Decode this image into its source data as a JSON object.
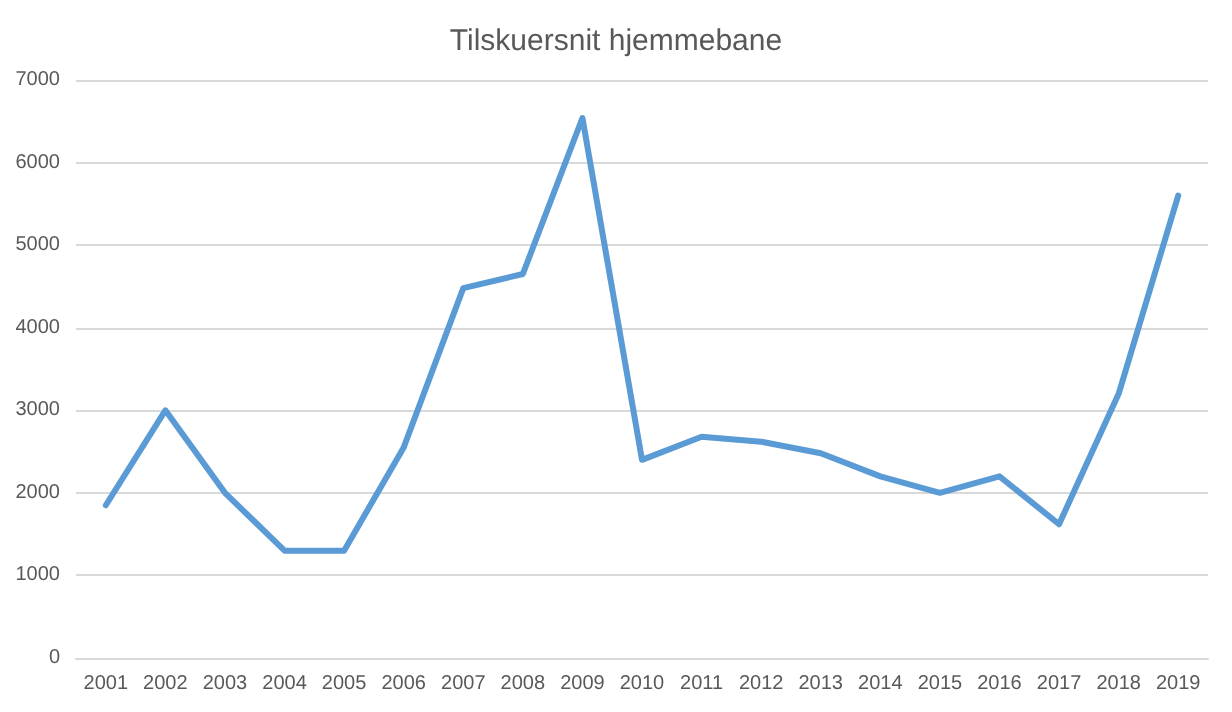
{
  "chart_data": {
    "type": "line",
    "title": "Tilskuersnit hjemmebane",
    "categories": [
      "2001",
      "2002",
      "2003",
      "2004",
      "2005",
      "2006",
      "2007",
      "2008",
      "2009",
      "2010",
      "2011",
      "2012",
      "2013",
      "2014",
      "2015",
      "2016",
      "2017",
      "2018",
      "2019"
    ],
    "series": [
      {
        "color": "#5b9bd5",
        "values": [
          1850,
          3000,
          2000,
          1300,
          1300,
          2550,
          4480,
          4650,
          6540,
          2400,
          2680,
          2620,
          2480,
          2200,
          2000,
          2200,
          1620,
          3200,
          5600
        ]
      }
    ],
    "ylim": [
      0,
      7000
    ],
    "yticks": [
      0,
      1000,
      2000,
      3000,
      4000,
      5000,
      6000,
      7000
    ],
    "grid": "y",
    "marker": "none",
    "line_style": "solid"
  }
}
